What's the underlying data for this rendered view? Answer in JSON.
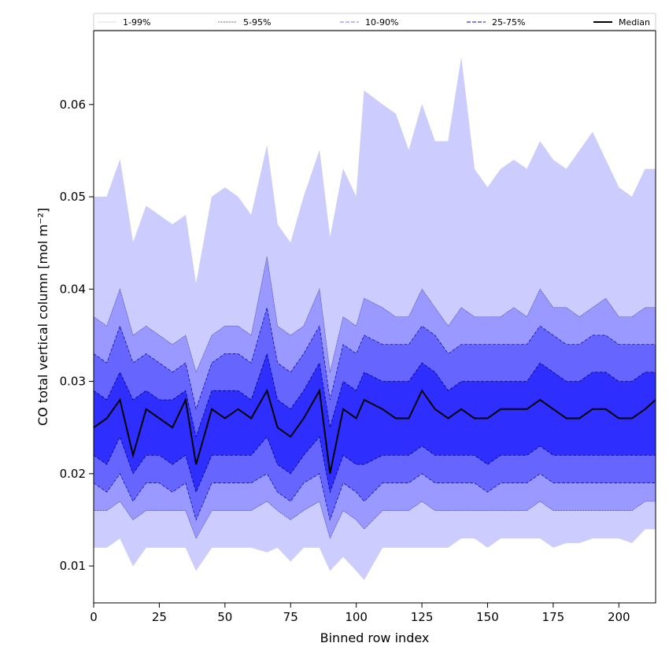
{
  "chart_data": {
    "type": "area",
    "xlabel": "Binned row index",
    "ylabel": "CO total vertical column [mol m⁻²]",
    "xlim": [
      0,
      214
    ],
    "ylim": [
      0.006,
      0.068
    ],
    "x_ticks": [
      0,
      25,
      50,
      75,
      100,
      125,
      150,
      175,
      200
    ],
    "y_ticks": [
      0.01,
      0.02,
      0.03,
      0.04,
      0.05,
      0.06
    ],
    "x_tick_labels": [
      "0",
      "25",
      "50",
      "75",
      "100",
      "125",
      "150",
      "175",
      "200"
    ],
    "y_tick_labels": [
      "0.01",
      "0.02",
      "0.03",
      "0.04",
      "0.05",
      "0.06"
    ],
    "grid": false,
    "legend_position": "top, horizontal strip above plot",
    "legend": [
      {
        "label": "1-99%",
        "color": "#d8d8ff",
        "style": "thin solid"
      },
      {
        "label": "5-95%",
        "color": "#3333cc",
        "style": "thin dotted"
      },
      {
        "label": "10-90%",
        "color": "#6666ff",
        "style": "dashed"
      },
      {
        "label": "25-75%",
        "color": "#2222cc",
        "style": "dashed"
      },
      {
        "label": "Median",
        "color": "#000000",
        "style": "solid"
      }
    ],
    "band_colors": {
      "p1_99": "#ccccff",
      "p5_95": "#9999ff",
      "p10_90": "#6666ff",
      "p25_75": "#2e2eff",
      "median": "#000000"
    },
    "x": [
      0,
      5,
      10,
      15,
      20,
      25,
      30,
      35,
      39,
      45,
      50,
      55,
      60,
      66,
      70,
      75,
      80,
      86,
      90,
      95,
      100,
      103,
      110,
      115,
      120,
      125,
      130,
      135,
      140,
      145,
      150,
      155,
      160,
      165,
      170,
      175,
      180,
      185,
      190,
      195,
      200,
      205,
      210,
      214
    ],
    "series": [
      {
        "name": "1-99%",
        "role": "upper",
        "values": [
          0.05,
          0.05,
          0.054,
          0.045,
          0.049,
          0.048,
          0.047,
          0.048,
          0.0405,
          0.05,
          0.051,
          0.05,
          0.048,
          0.0555,
          0.047,
          0.045,
          0.05,
          0.055,
          0.0455,
          0.053,
          0.05,
          0.0615,
          0.06,
          0.059,
          0.055,
          0.06,
          0.056,
          0.056,
          0.065,
          0.053,
          0.051,
          0.053,
          0.054,
          0.053,
          0.056,
          0.054,
          0.053,
          0.055,
          0.057,
          0.054,
          0.051,
          0.05,
          0.053,
          0.053
        ]
      },
      {
        "name": "5-95%",
        "role": "upper",
        "values": [
          0.037,
          0.036,
          0.04,
          0.035,
          0.036,
          0.035,
          0.034,
          0.035,
          0.031,
          0.035,
          0.036,
          0.036,
          0.035,
          0.0435,
          0.036,
          0.035,
          0.036,
          0.04,
          0.031,
          0.037,
          0.036,
          0.039,
          0.038,
          0.037,
          0.037,
          0.04,
          0.038,
          0.036,
          0.038,
          0.037,
          0.037,
          0.037,
          0.038,
          0.037,
          0.04,
          0.038,
          0.038,
          0.037,
          0.038,
          0.039,
          0.037,
          0.037,
          0.038,
          0.038
        ]
      },
      {
        "name": "10-90%",
        "role": "upper",
        "values": [
          0.033,
          0.032,
          0.036,
          0.032,
          0.033,
          0.032,
          0.031,
          0.032,
          0.027,
          0.032,
          0.033,
          0.033,
          0.032,
          0.038,
          0.032,
          0.031,
          0.033,
          0.036,
          0.028,
          0.034,
          0.033,
          0.035,
          0.034,
          0.034,
          0.034,
          0.036,
          0.035,
          0.033,
          0.034,
          0.034,
          0.034,
          0.034,
          0.034,
          0.034,
          0.036,
          0.035,
          0.034,
          0.034,
          0.035,
          0.035,
          0.034,
          0.034,
          0.034,
          0.034
        ]
      },
      {
        "name": "25-75%",
        "role": "upper",
        "values": [
          0.029,
          0.028,
          0.031,
          0.028,
          0.029,
          0.028,
          0.028,
          0.029,
          0.024,
          0.029,
          0.029,
          0.029,
          0.028,
          0.033,
          0.028,
          0.027,
          0.029,
          0.032,
          0.025,
          0.03,
          0.029,
          0.031,
          0.03,
          0.03,
          0.03,
          0.032,
          0.031,
          0.029,
          0.03,
          0.03,
          0.03,
          0.03,
          0.03,
          0.03,
          0.032,
          0.031,
          0.03,
          0.03,
          0.031,
          0.031,
          0.03,
          0.03,
          0.031,
          0.031
        ]
      },
      {
        "name": "Median",
        "role": "median",
        "values": [
          0.025,
          0.026,
          0.028,
          0.022,
          0.027,
          0.026,
          0.025,
          0.028,
          0.021,
          0.027,
          0.026,
          0.027,
          0.026,
          0.029,
          0.025,
          0.024,
          0.026,
          0.029,
          0.02,
          0.027,
          0.026,
          0.028,
          0.027,
          0.026,
          0.026,
          0.029,
          0.027,
          0.026,
          0.027,
          0.026,
          0.026,
          0.027,
          0.027,
          0.027,
          0.028,
          0.027,
          0.026,
          0.026,
          0.027,
          0.027,
          0.026,
          0.026,
          0.027,
          0.028
        ]
      },
      {
        "name": "25-75%",
        "role": "lower",
        "values": [
          0.022,
          0.021,
          0.024,
          0.02,
          0.022,
          0.022,
          0.021,
          0.022,
          0.018,
          0.022,
          0.022,
          0.022,
          0.022,
          0.024,
          0.021,
          0.02,
          0.022,
          0.024,
          0.018,
          0.022,
          0.021,
          0.021,
          0.022,
          0.022,
          0.022,
          0.023,
          0.022,
          0.022,
          0.022,
          0.022,
          0.021,
          0.022,
          0.022,
          0.022,
          0.023,
          0.022,
          0.022,
          0.022,
          0.022,
          0.022,
          0.022,
          0.022,
          0.022,
          0.022
        ]
      },
      {
        "name": "10-90%",
        "role": "lower",
        "values": [
          0.019,
          0.018,
          0.02,
          0.017,
          0.019,
          0.019,
          0.018,
          0.019,
          0.015,
          0.019,
          0.019,
          0.019,
          0.019,
          0.02,
          0.018,
          0.017,
          0.019,
          0.02,
          0.015,
          0.019,
          0.018,
          0.017,
          0.019,
          0.019,
          0.019,
          0.02,
          0.019,
          0.019,
          0.019,
          0.019,
          0.018,
          0.019,
          0.019,
          0.019,
          0.02,
          0.019,
          0.019,
          0.019,
          0.019,
          0.019,
          0.019,
          0.019,
          0.019,
          0.019
        ]
      },
      {
        "name": "5-95%",
        "role": "lower",
        "values": [
          0.016,
          0.016,
          0.017,
          0.015,
          0.016,
          0.016,
          0.016,
          0.016,
          0.013,
          0.016,
          0.016,
          0.016,
          0.016,
          0.017,
          0.016,
          0.015,
          0.016,
          0.017,
          0.013,
          0.016,
          0.015,
          0.014,
          0.016,
          0.016,
          0.016,
          0.017,
          0.016,
          0.016,
          0.016,
          0.016,
          0.016,
          0.016,
          0.016,
          0.016,
          0.017,
          0.016,
          0.016,
          0.016,
          0.016,
          0.016,
          0.016,
          0.016,
          0.017,
          0.017
        ]
      },
      {
        "name": "1-99%",
        "role": "lower",
        "values": [
          0.012,
          0.012,
          0.013,
          0.01,
          0.012,
          0.012,
          0.012,
          0.012,
          0.0095,
          0.012,
          0.012,
          0.012,
          0.012,
          0.0115,
          0.012,
          0.0105,
          0.012,
          0.012,
          0.0095,
          0.011,
          0.0095,
          0.0085,
          0.012,
          0.012,
          0.012,
          0.012,
          0.012,
          0.012,
          0.013,
          0.013,
          0.012,
          0.013,
          0.013,
          0.013,
          0.013,
          0.012,
          0.0125,
          0.0125,
          0.013,
          0.013,
          0.013,
          0.0125,
          0.014,
          0.014
        ]
      }
    ]
  }
}
